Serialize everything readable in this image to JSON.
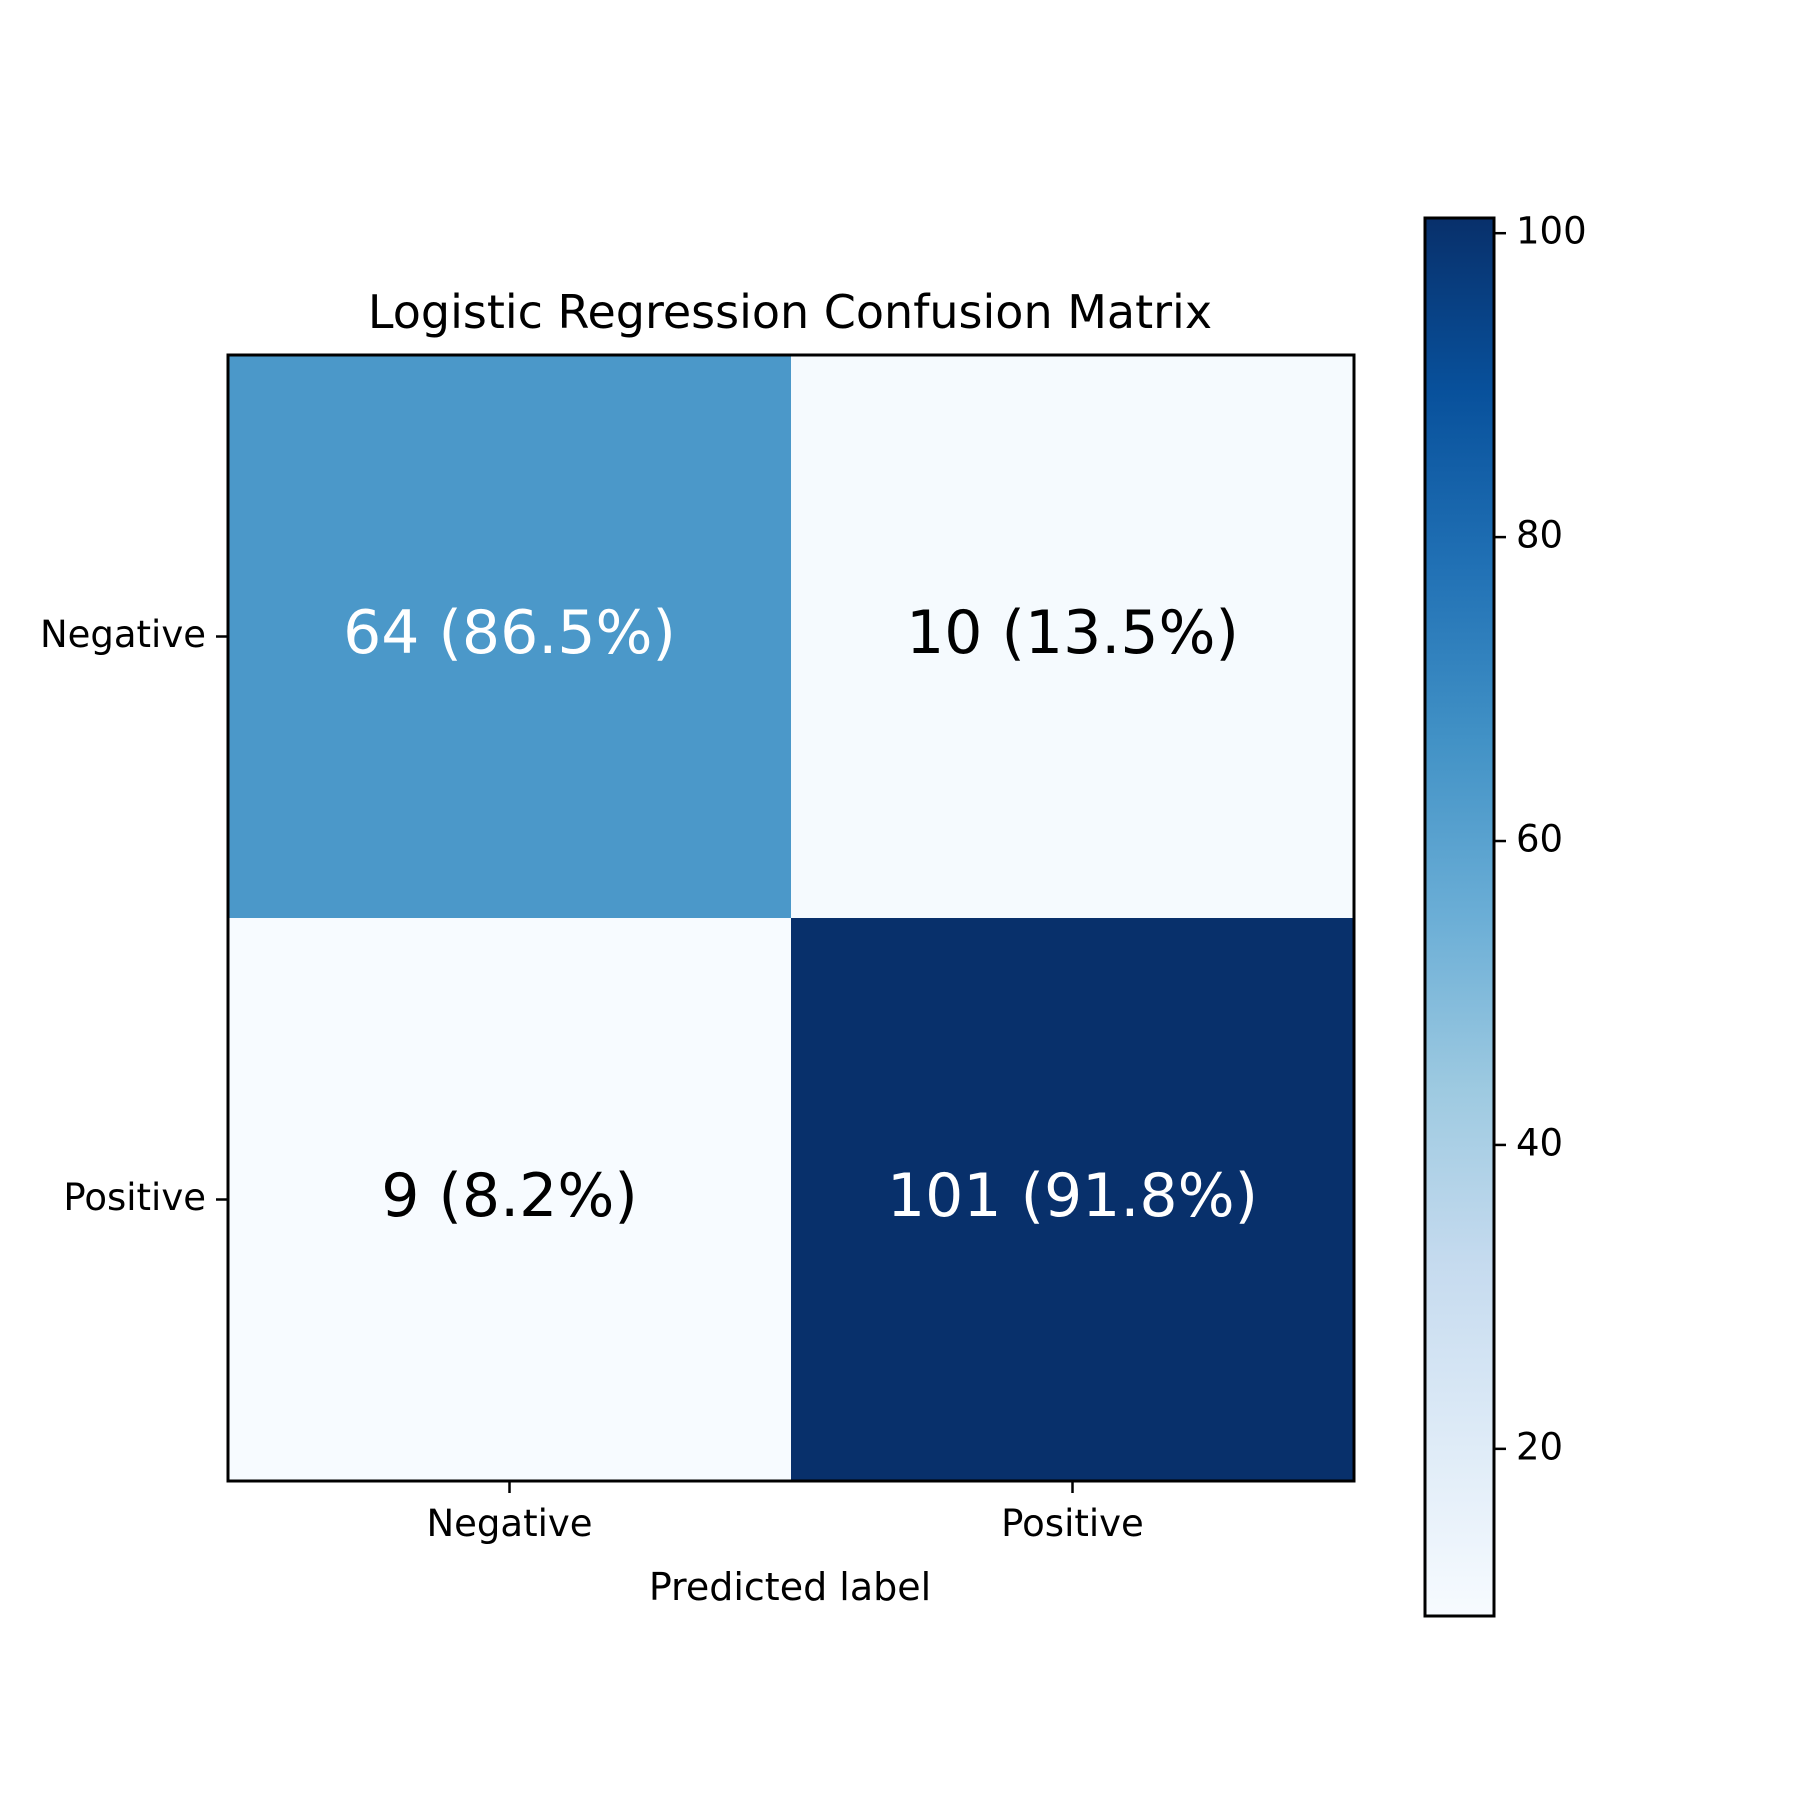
{
  "chart_data": {
    "type": "heatmap",
    "title": "Logistic Regression Confusion Matrix",
    "xlabel": "Predicted label",
    "ylabel": "",
    "x_categories": [
      "Negative",
      "Positive"
    ],
    "y_categories": [
      "Negative",
      "Positive"
    ],
    "values": [
      [
        64,
        10
      ],
      [
        9,
        101
      ]
    ],
    "cell_labels": [
      [
        "64 (86.5%)",
        "10 (13.5%)"
      ],
      [
        "9 (8.2%)",
        "101 (91.8%)"
      ]
    ],
    "colormap": "Blues",
    "colorbar": {
      "range": [
        9,
        101
      ],
      "ticks": [
        20,
        40,
        60,
        80,
        100
      ],
      "tick_labels": [
        "20",
        "40",
        "60",
        "80",
        "100"
      ]
    },
    "colors": {
      "low": "#f7fbff",
      "high": "#08306b",
      "text_on_dark": "#ffffff",
      "text_on_light": "#000000"
    }
  }
}
